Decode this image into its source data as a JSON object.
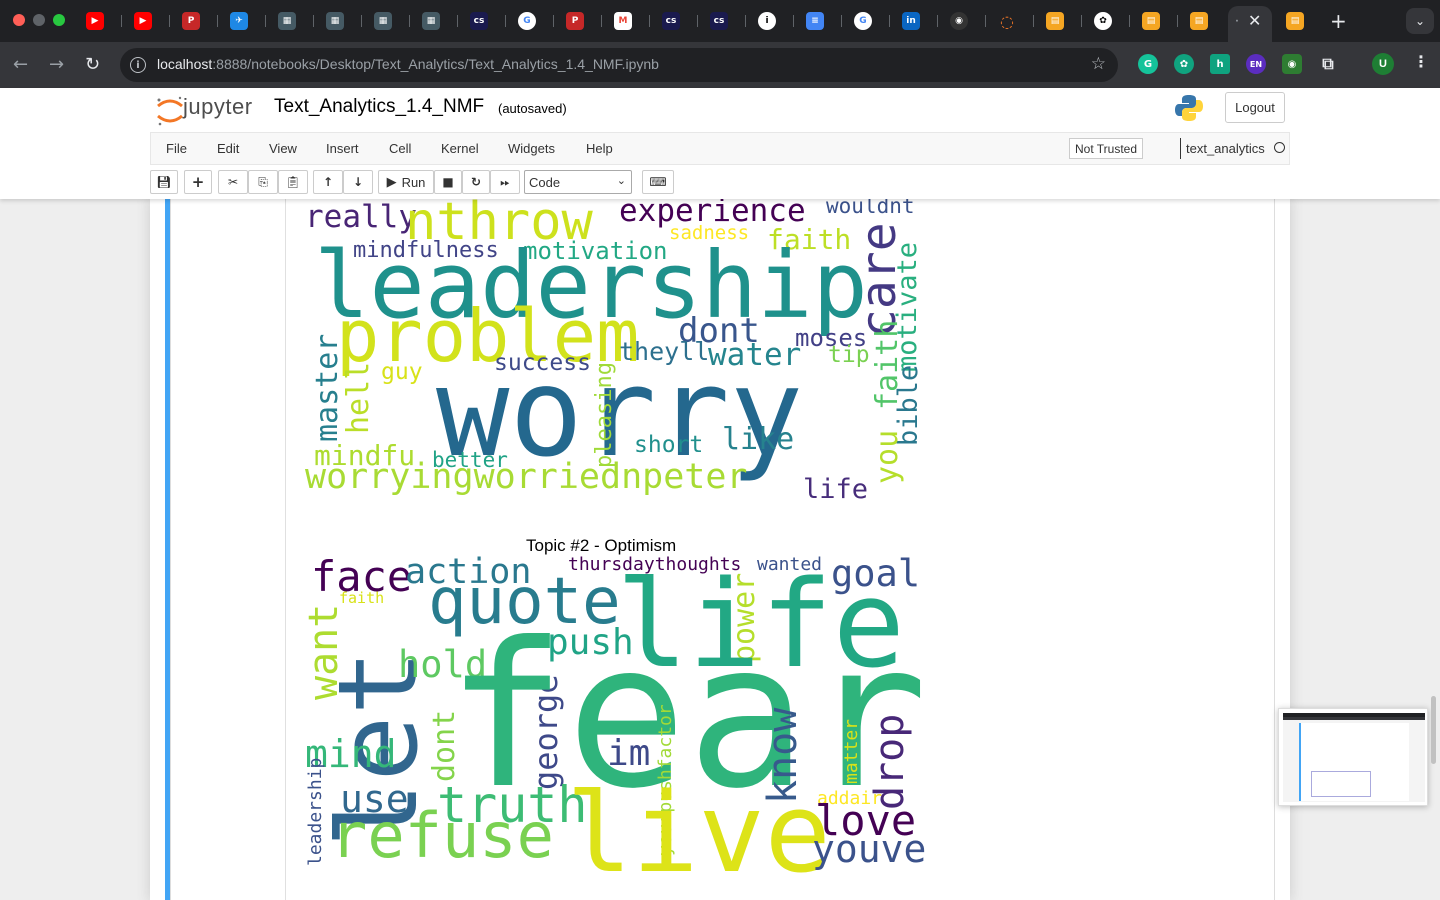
{
  "browser": {
    "url_host": "localhost",
    "url_path": ":8888/notebooks/Desktop/Text_Analytics/Text_Analytics_1.4_NMF.ipynb",
    "tab_icons": [
      "youtube-icon",
      "youtube-icon",
      "pdf-icon",
      "bird-icon",
      "qr-icon",
      "qr-icon",
      "qr-icon",
      "qr-icon",
      "cs-icon",
      "google-icon",
      "pdf-icon",
      "gmail-icon",
      "cs-icon",
      "cs-icon",
      "info-icon",
      "docs-icon",
      "google-icon",
      "linkedin-icon",
      "github-icon",
      "jupyter-icon",
      "notebook-icon",
      "openai-icon",
      "notebook-icon",
      "notebook-icon",
      "notebook-icon",
      "notebook-icon"
    ],
    "active_tab_close": "✕",
    "new_tab": "+",
    "extensions": {
      "grammarly": "G",
      "h": "h",
      "en": "EN",
      "profile": "U"
    }
  },
  "jupyter": {
    "logo_text": "jupyter",
    "notebook_name": "Text_Analytics_1.4_NMF",
    "autosave": "(autosaved)",
    "logout": "Logout",
    "menu": [
      "File",
      "Edit",
      "View",
      "Insert",
      "Cell",
      "Kernel",
      "Widgets",
      "Help"
    ],
    "trust": "Not Trusted",
    "kernel": "text_analytics",
    "run_label": "Run",
    "cell_type": "Code"
  },
  "wordcloud_1": {
    "words": [
      "really",
      "nthrow",
      "experience",
      "wouldnt",
      "mindfulness",
      "motivation",
      "sadness",
      "faith",
      "care",
      "leadership",
      "problem",
      "dont",
      "moses",
      "motivate",
      "theyll",
      "water",
      "tip",
      "success",
      "bible",
      "master",
      "hell",
      "guy",
      "faith",
      "you",
      "worry",
      "pleasing",
      "short",
      "like",
      "mindfu",
      "better",
      "worryingworriednpeter",
      "life"
    ]
  },
  "wordcloud_2": {
    "title": "Topic #2 - Optimism",
    "words": [
      "face",
      "action",
      "thursdaythoughts",
      "wanted",
      "goal",
      "faith",
      "quote",
      "power",
      "life",
      "want",
      "let",
      "push",
      "hold",
      "george",
      "fear",
      "dont",
      "im",
      "mind",
      "know",
      "drop",
      "matter",
      "use",
      "yourpushfactor",
      "truth",
      "addair",
      "love",
      "leadership",
      "refuse",
      "live",
      "youve"
    ]
  }
}
